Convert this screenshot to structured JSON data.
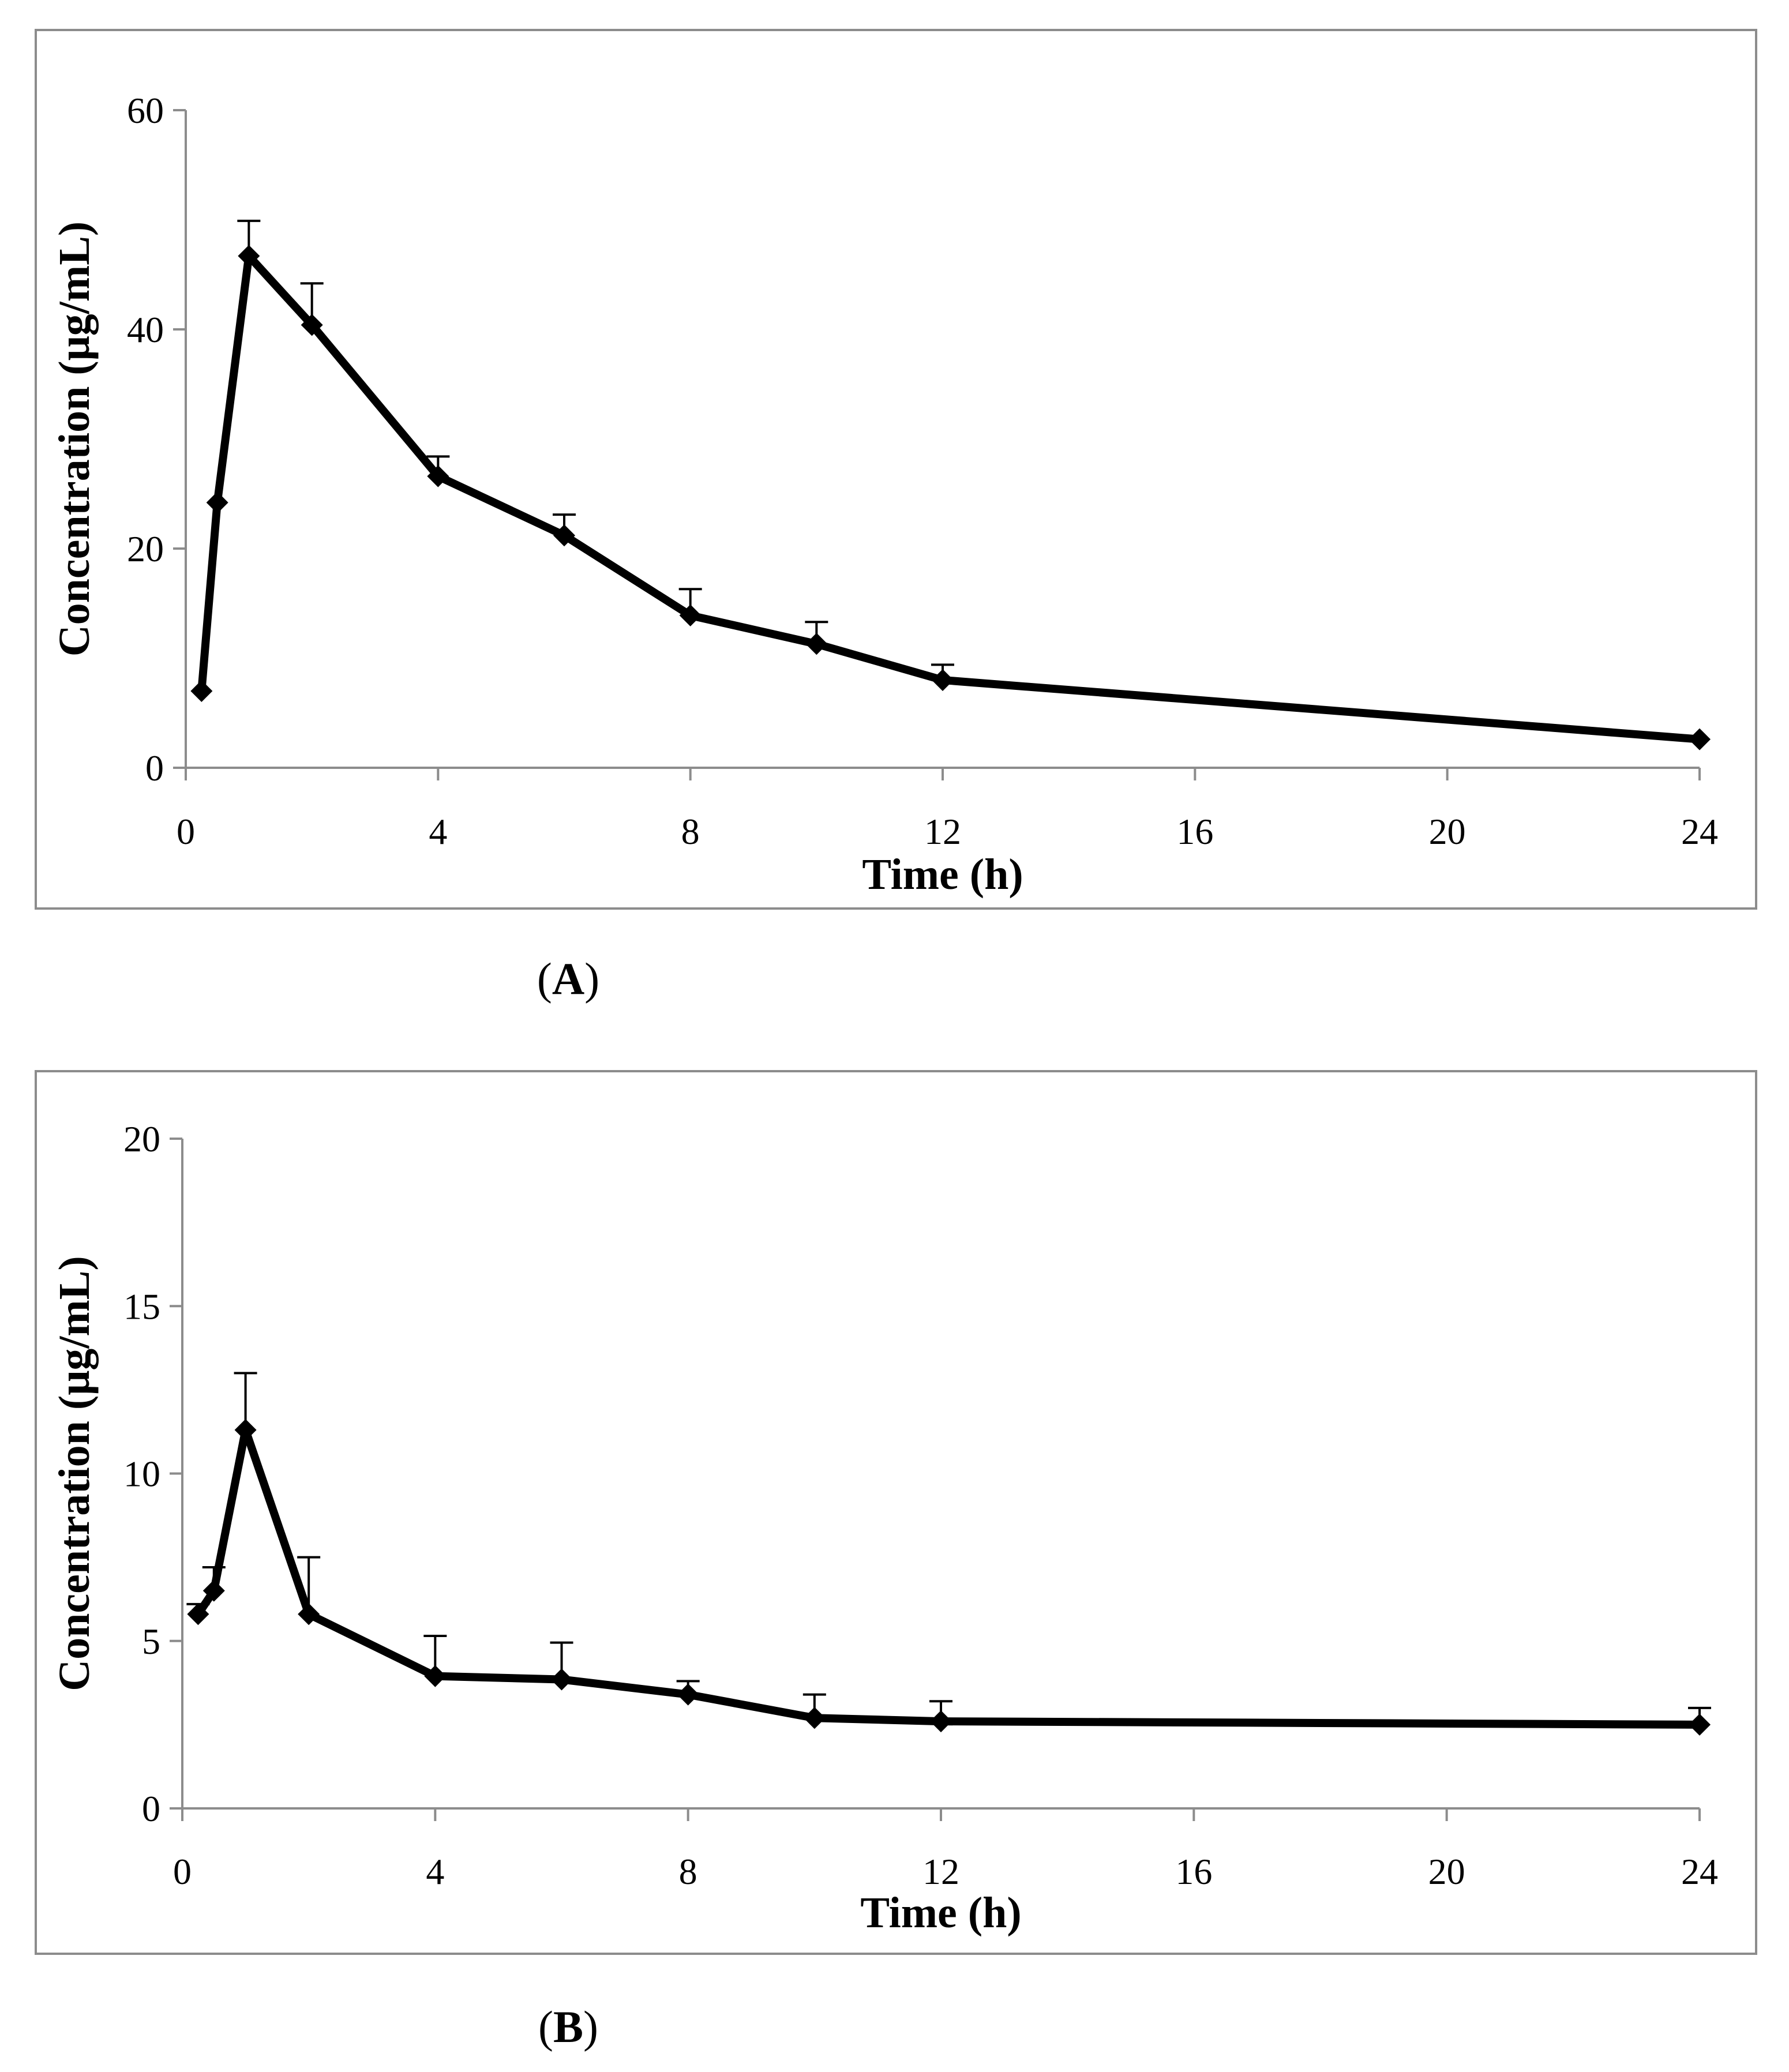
{
  "chart_data": [
    {
      "type": "line",
      "panel_label": "A",
      "title": "",
      "xlabel": "Time (h)",
      "ylabel": "Concentration (μg/mL)",
      "xlim": [
        0,
        24
      ],
      "ylim": [
        0,
        60
      ],
      "xticks": [
        0,
        4,
        8,
        12,
        16,
        20,
        24
      ],
      "yticks": [
        0,
        20,
        40,
        60
      ],
      "grid": false,
      "series": [
        {
          "name": "Concentration",
          "color": "#000000",
          "marker": "diamond",
          "x": [
            0.25,
            0.5,
            1,
            2,
            4,
            6,
            8,
            10,
            12,
            24
          ],
          "values": [
            7.0,
            24.2,
            46.7,
            40.4,
            26.6,
            21.2,
            13.9,
            11.3,
            8.0,
            2.6
          ],
          "error_upper": [
            0,
            0,
            3.2,
            3.8,
            1.8,
            1.9,
            2.4,
            2.0,
            1.4,
            0
          ]
        }
      ]
    },
    {
      "type": "line",
      "panel_label": "B",
      "title": "",
      "xlabel": "Time (h)",
      "ylabel": "Concentration (μg/mL)",
      "xlim": [
        0,
        24
      ],
      "ylim": [
        0,
        20
      ],
      "xticks": [
        0,
        4,
        8,
        12,
        16,
        20,
        24
      ],
      "yticks": [
        0,
        5,
        10,
        15,
        20
      ],
      "grid": false,
      "series": [
        {
          "name": "Concentration",
          "color": "#000000",
          "marker": "diamond",
          "x": [
            0.25,
            0.5,
            1,
            2,
            4,
            6,
            8,
            10,
            12,
            24
          ],
          "values": [
            5.8,
            6.5,
            11.3,
            5.8,
            3.95,
            3.85,
            3.4,
            2.7,
            2.6,
            2.5
          ],
          "error_upper": [
            0.3,
            0.7,
            1.7,
            1.7,
            1.2,
            1.1,
            0.4,
            0.7,
            0.6,
            0.5
          ]
        }
      ]
    }
  ]
}
